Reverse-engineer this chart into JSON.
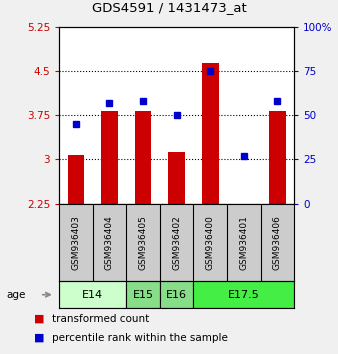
{
  "title": "GDS4591 / 1431473_at",
  "samples": [
    "GSM936403",
    "GSM936404",
    "GSM936405",
    "GSM936402",
    "GSM936400",
    "GSM936401",
    "GSM936406"
  ],
  "bar_values": [
    3.07,
    3.82,
    3.82,
    3.13,
    4.63,
    2.25,
    3.82
  ],
  "percentile_values": [
    45,
    57,
    58,
    50,
    75,
    27,
    58
  ],
  "ylim_left": [
    2.25,
    5.25
  ],
  "ylim_right": [
    0,
    100
  ],
  "yticks_left": [
    2.25,
    3.0,
    3.75,
    4.5,
    5.25
  ],
  "ytick_labels_left": [
    "2.25",
    "3",
    "3.75",
    "4.5",
    "5.25"
  ],
  "yticks_right": [
    0,
    25,
    50,
    75,
    100
  ],
  "ytick_labels_right": [
    "0",
    "25",
    "50",
    "75",
    "100%"
  ],
  "bar_color": "#cc0000",
  "dot_color": "#0000cc",
  "bar_width": 0.5,
  "age_groups": [
    {
      "label": "E14",
      "indices": [
        0,
        1
      ],
      "color": "#ccffcc"
    },
    {
      "label": "E15",
      "indices": [
        2
      ],
      "color": "#88dd88"
    },
    {
      "label": "E16",
      "indices": [
        3
      ],
      "color": "#88dd88"
    },
    {
      "label": "E17.5",
      "indices": [
        4,
        5,
        6
      ],
      "color": "#44ee44"
    }
  ],
  "background_plot": "#ffffff",
  "sample_box_color": "#cccccc",
  "legend_red_label": "transformed count",
  "legend_blue_label": "percentile rank within the sample",
  "age_label": "age",
  "bar_bottom": 2.25
}
